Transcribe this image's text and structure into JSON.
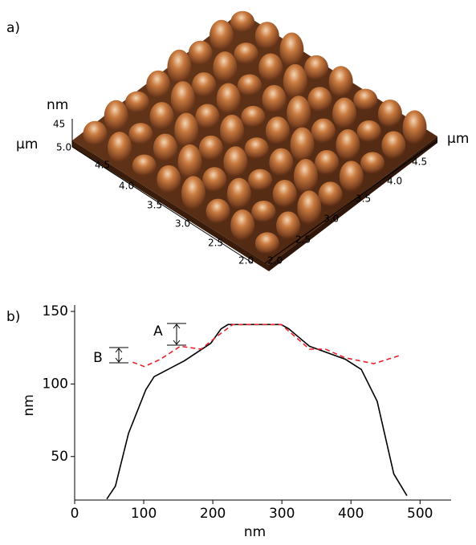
{
  "panel_a": {
    "label": "a)",
    "z_unit": "nm",
    "z_max": "45",
    "left_unit": "µm",
    "left_ticks": [
      "5.0",
      "4.5",
      "4.0",
      "3.5",
      "3.0",
      "2.5",
      "2.0"
    ],
    "right_unit": "µm",
    "right_ticks": [
      "2.0",
      "2.5",
      "3.0",
      "3.5",
      "4.0",
      "4.5"
    ]
  },
  "chart_data": {
    "type": "line",
    "label": "b)",
    "x_label": "nm",
    "y_label": "nm",
    "xlim": [
      0,
      545
    ],
    "ylim": [
      20,
      150
    ],
    "xticks": [
      0,
      100,
      200,
      300,
      400,
      500
    ],
    "yticks": [
      50,
      100,
      150
    ],
    "annotations": [
      "A",
      "B"
    ],
    "series": [
      {
        "color": "#000000",
        "line_style": "solid",
        "x": [
          46.5,
          59,
          78,
          103,
          115,
          159,
          197,
          212,
          222,
          299,
          310,
          340,
          392,
          415,
          438,
          462,
          481
        ],
        "values": [
          20.7,
          29.6,
          66,
          96,
          105,
          116,
          128,
          138,
          141,
          141,
          138,
          126,
          117,
          110,
          88,
          38,
          23
        ]
      },
      {
        "color": "#e8202a",
        "line_style": "dashed",
        "x": [
          84,
          101,
          124,
          153,
          183,
          212,
          229,
          299,
          340,
          363,
          392,
          433,
          473
        ],
        "values": [
          115,
          112,
          117,
          126,
          124,
          135,
          141,
          141,
          124,
          124,
          118,
          114,
          120
        ]
      }
    ]
  }
}
